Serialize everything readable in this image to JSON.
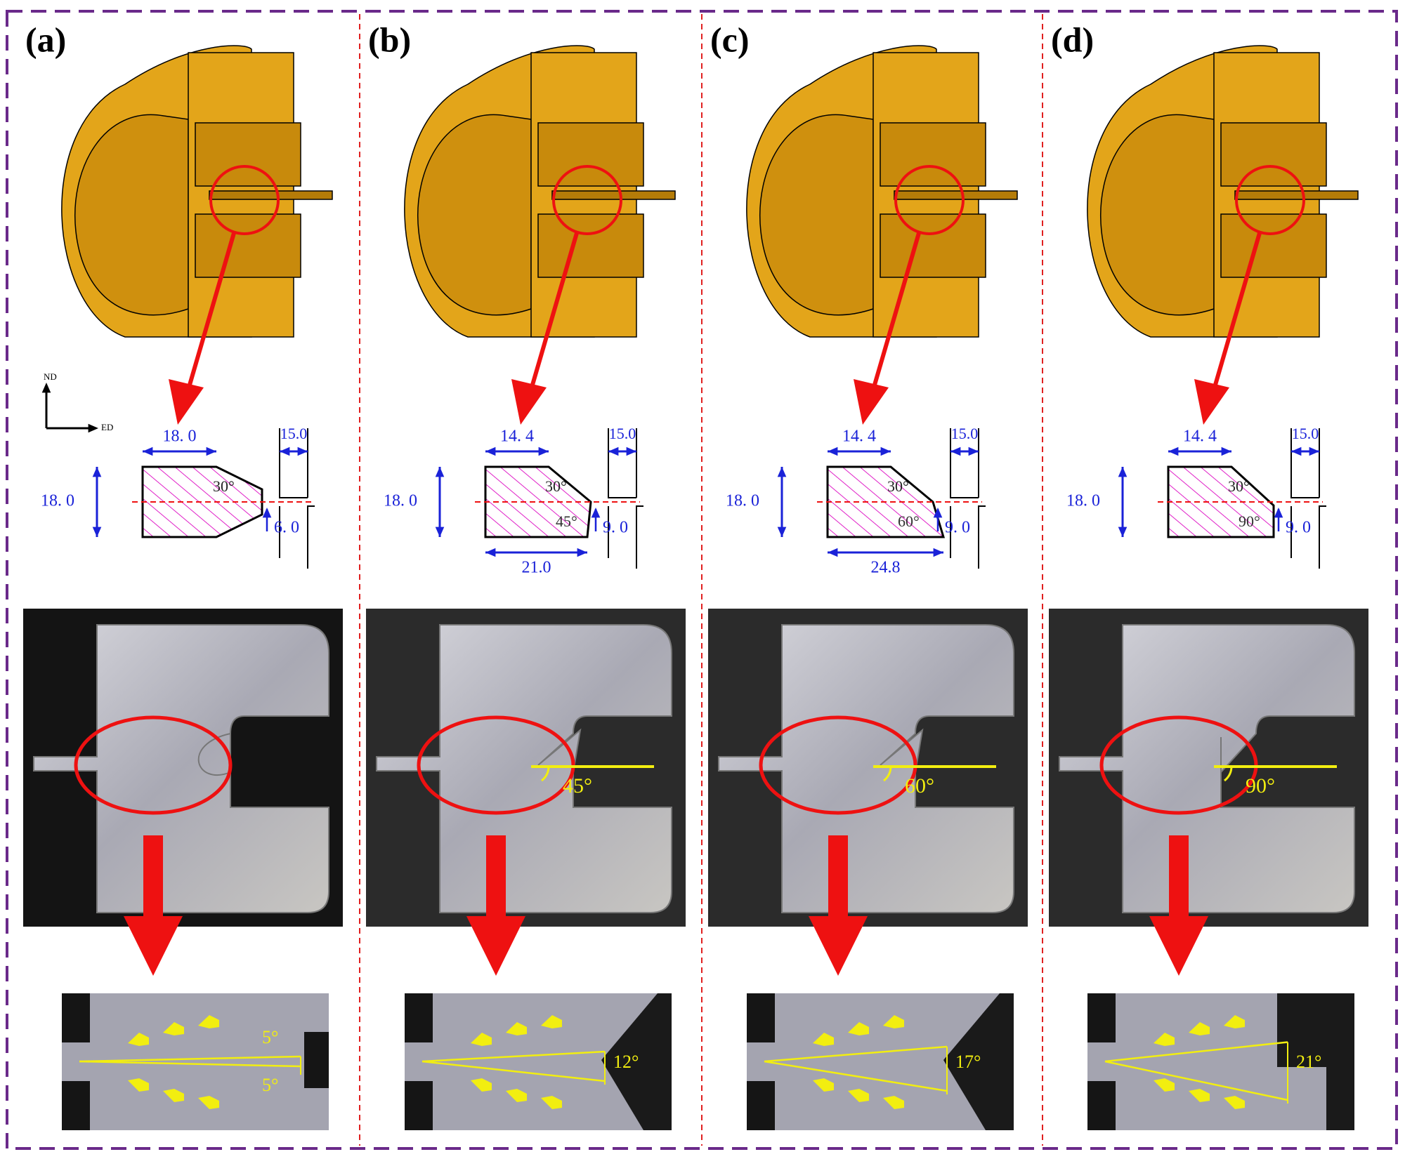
{
  "axes": {
    "vertical": "ND",
    "horizontal": "ED"
  },
  "panels": [
    {
      "label": "(a)",
      "schematic": {
        "top_width": "18. 0",
        "height": "18. 0",
        "gap": "15.0",
        "offset": "6. 0",
        "angles": [
          "30°"
        ]
      },
      "zoom_angles": [
        "5°",
        "5°"
      ]
    },
    {
      "label": "(b)",
      "schematic": {
        "top_width": "14. 4",
        "height": "18. 0",
        "gap": "15.0",
        "offset": "9. 0",
        "angles": [
          "30°",
          "45°"
        ],
        "bottom_width": "21.0"
      },
      "photo_angle": "45°",
      "zoom_angles": [
        "12°"
      ]
    },
    {
      "label": "(c)",
      "schematic": {
        "top_width": "14. 4",
        "height": "18. 0",
        "gap": "15.0",
        "offset": "9. 0",
        "angles": [
          "30°",
          "60°"
        ],
        "bottom_width": "24.8"
      },
      "photo_angle": "60°",
      "zoom_angles": [
        "17°"
      ]
    },
    {
      "label": "(d)",
      "schematic": {
        "top_width": "14. 4",
        "height": "18. 0",
        "gap": "15.0",
        "offset": "9. 0",
        "angles": [
          "30°",
          "90°"
        ]
      },
      "photo_angle": "90°",
      "zoom_angles": [
        "21°"
      ]
    }
  ]
}
